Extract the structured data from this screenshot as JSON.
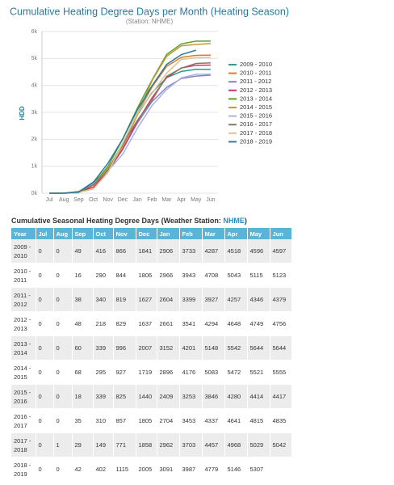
{
  "chart_data": {
    "type": "line",
    "title": "Cumulative Heating Degree Days per Month (Heating Season)",
    "subtitle": "(Station: NHME)",
    "y_label": "HDD",
    "categories": [
      "Jul",
      "Aug",
      "Sep",
      "Oct",
      "Nov",
      "Dec",
      "Jan",
      "Feb",
      "Mar",
      "Apr",
      "May",
      "Jun"
    ],
    "ylim": [
      0,
      6000
    ],
    "yticks": [
      {
        "value": 0,
        "label": "0k"
      },
      {
        "value": 1000,
        "label": "1k"
      },
      {
        "value": 2000,
        "label": "2k"
      },
      {
        "value": 3000,
        "label": "3k"
      },
      {
        "value": 4000,
        "label": "4k"
      },
      {
        "value": 5000,
        "label": "5k"
      },
      {
        "value": 6000,
        "label": "6k"
      }
    ],
    "grid": true,
    "legend": "right",
    "series": [
      {
        "name": "2009 - 2010",
        "color": "#2a9d8f",
        "values": [
          0,
          0,
          49,
          416,
          866,
          1841,
          2906,
          3733,
          4287,
          4518,
          4596,
          4597
        ]
      },
      {
        "name": "2010 - 2011",
        "color": "#e0782e",
        "values": [
          0,
          0,
          16,
          290,
          844,
          1806,
          2966,
          3943,
          4708,
          5043,
          5115,
          5123
        ]
      },
      {
        "name": "2011 - 2012",
        "color": "#8c7cc4",
        "values": [
          0,
          0,
          38,
          340,
          819,
          1627,
          2604,
          3399,
          3927,
          4257,
          4346,
          4379
        ]
      },
      {
        "name": "2012 - 2013",
        "color": "#d6336c",
        "values": [
          0,
          0,
          48,
          218,
          829,
          1637,
          2661,
          3541,
          4294,
          4648,
          4749,
          4756
        ]
      },
      {
        "name": "2013 - 2014",
        "color": "#5aa02c",
        "values": [
          0,
          0,
          60,
          339,
          996,
          2007,
          3152,
          4201,
          5148,
          5542,
          5644,
          5644
        ]
      },
      {
        "name": "2014 - 2015",
        "color": "#c39a3a",
        "values": [
          0,
          0,
          68,
          295,
          927,
          1719,
          2896,
          4176,
          5083,
          5472,
          5521,
          5555
        ]
      },
      {
        "name": "2015 - 2016",
        "color": "#a3b6e3",
        "values": [
          0,
          0,
          18,
          339,
          825,
          1440,
          2409,
          3253,
          3846,
          4280,
          4414,
          4417
        ]
      },
      {
        "name": "2016 - 2017",
        "color": "#8a7866",
        "values": [
          0,
          0,
          35,
          310,
          857,
          1805,
          2704,
          3453,
          4337,
          4641,
          4815,
          4835
        ]
      },
      {
        "name": "2017 - 2018",
        "color": "#d8c690",
        "values": [
          0,
          1,
          29,
          149,
          771,
          1858,
          2962,
          3703,
          4457,
          4968,
          5029,
          5042
        ]
      },
      {
        "name": "2018 - 2019",
        "color": "#2b7a9b",
        "values": [
          0,
          0,
          42,
          402,
          1115,
          2005,
          3091,
          3987,
          4779,
          5146,
          5307,
          null
        ]
      }
    ]
  },
  "table": {
    "title": "Cumulative Seasonal Heating Degree Days (Weather Station:",
    "station": "NHME",
    "title_end": ")",
    "columns": [
      "Year",
      "Jul",
      "Aug",
      "Sep",
      "Oct",
      "Nov",
      "Dec",
      "Jan",
      "Feb",
      "Mar",
      "Apr",
      "May",
      "Jun"
    ],
    "rows": [
      [
        "2009 - 2010",
        0,
        0,
        49,
        416,
        866,
        1841,
        2906,
        3733,
        4287,
        4518,
        4596,
        4597
      ],
      [
        "2010 - 2011",
        0,
        0,
        16,
        290,
        844,
        1806,
        2966,
        3943,
        4708,
        5043,
        5115,
        5123
      ],
      [
        "2011 - 2012",
        0,
        0,
        38,
        340,
        819,
        1627,
        2604,
        3399,
        3927,
        4257,
        4346,
        4379
      ],
      [
        "2012 - 2013",
        0,
        0,
        48,
        218,
        829,
        1637,
        2661,
        3541,
        4294,
        4648,
        4749,
        4756
      ],
      [
        "2013 - 2014",
        0,
        0,
        60,
        339,
        996,
        2007,
        3152,
        4201,
        5148,
        5542,
        5644,
        5644
      ],
      [
        "2014 - 2015",
        0,
        0,
        68,
        295,
        927,
        1719,
        2896,
        4176,
        5083,
        5472,
        5521,
        5555
      ],
      [
        "2015 - 2016",
        0,
        0,
        18,
        339,
        825,
        1440,
        2409,
        3253,
        3846,
        4280,
        4414,
        4417
      ],
      [
        "2016 - 2017",
        0,
        0,
        35,
        310,
        857,
        1805,
        2704,
        3453,
        4337,
        4641,
        4815,
        4835
      ],
      [
        "2017 - 2018",
        0,
        1,
        29,
        149,
        771,
        1858,
        2962,
        3703,
        4457,
        4968,
        5029,
        5042
      ],
      [
        "2018 - 2019",
        0,
        0,
        42,
        402,
        1115,
        2005,
        3091,
        3987,
        4779,
        5146,
        5307,
        null
      ]
    ]
  }
}
